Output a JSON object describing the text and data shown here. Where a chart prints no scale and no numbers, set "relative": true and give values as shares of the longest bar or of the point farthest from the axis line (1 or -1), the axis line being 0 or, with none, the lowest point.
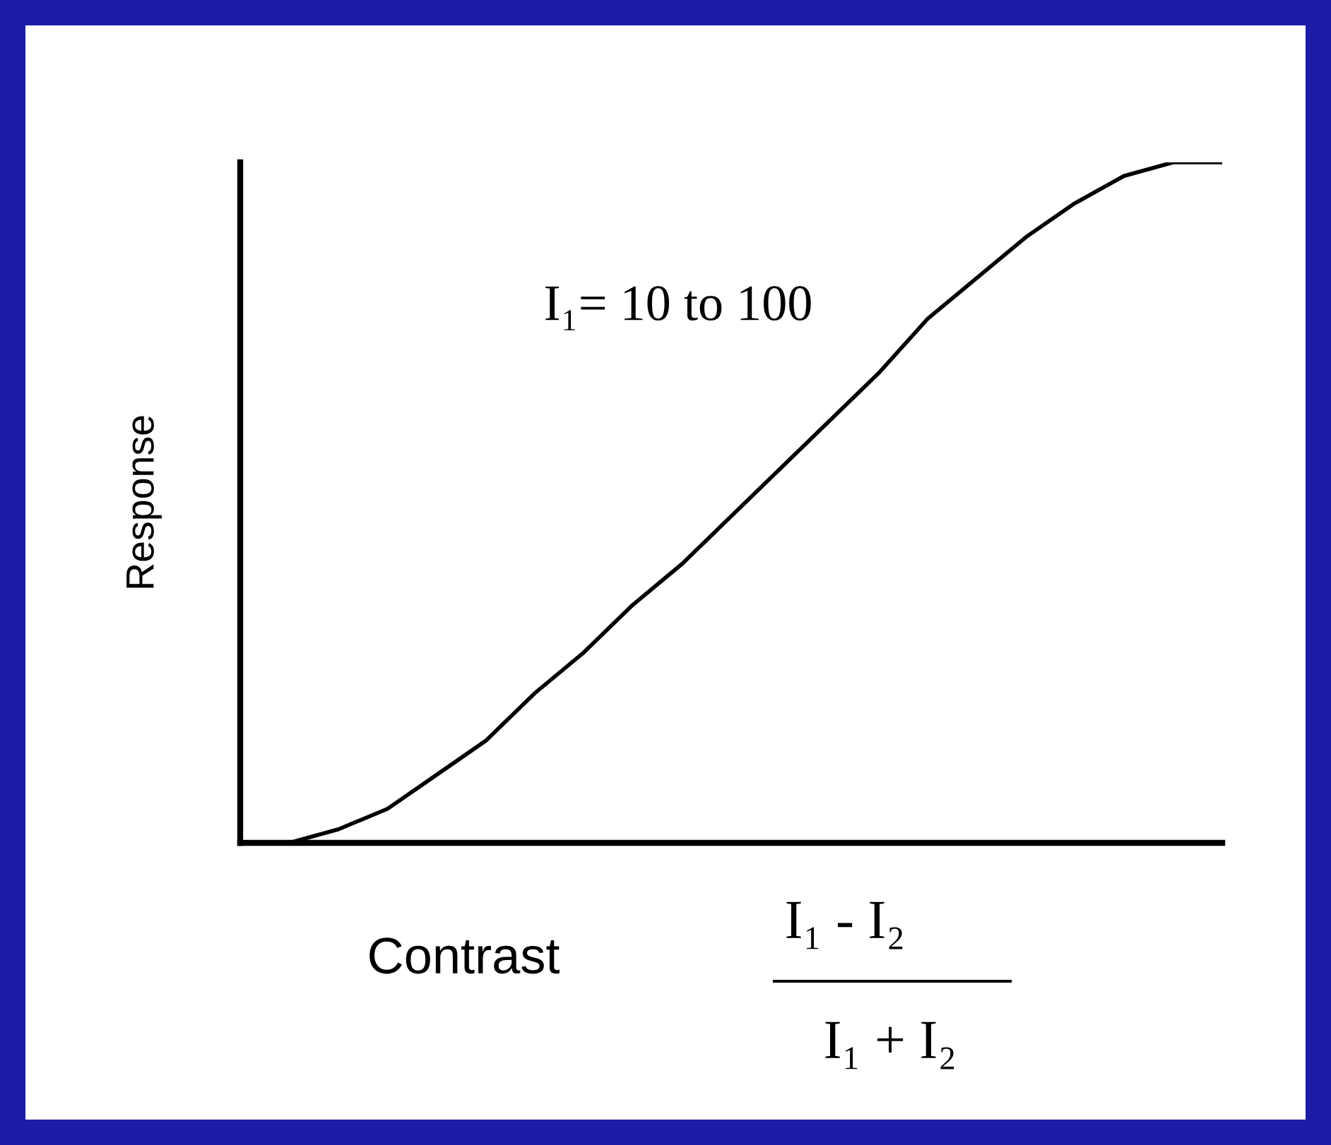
{
  "chart_data": {
    "type": "line",
    "relative": true,
    "xlabel": "Contrast",
    "ylabel": "Response",
    "categories": [
      null,
      null,
      null,
      null,
      null,
      null,
      null,
      null,
      null,
      null,
      null,
      null,
      null,
      null,
      null,
      null,
      null,
      null,
      null,
      null,
      null
    ],
    "series": [
      {
        "color": "#000000",
        "values": [
          0,
          0,
          0.02,
          0.05,
          0.1,
          0.15,
          0.22,
          0.28,
          0.35,
          0.41,
          0.48,
          0.55,
          0.62,
          0.69,
          0.77,
          0.83,
          0.89,
          0.94,
          0.98,
          1,
          1
        ]
      }
    ],
    "annotations": [
      "I₁= 10 to 100",
      "I₁ - I₂",
      "I₁ + I₂"
    ],
    "grid": false,
    "legend": false,
    "marker": "none",
    "line_style": "solid"
  }
}
